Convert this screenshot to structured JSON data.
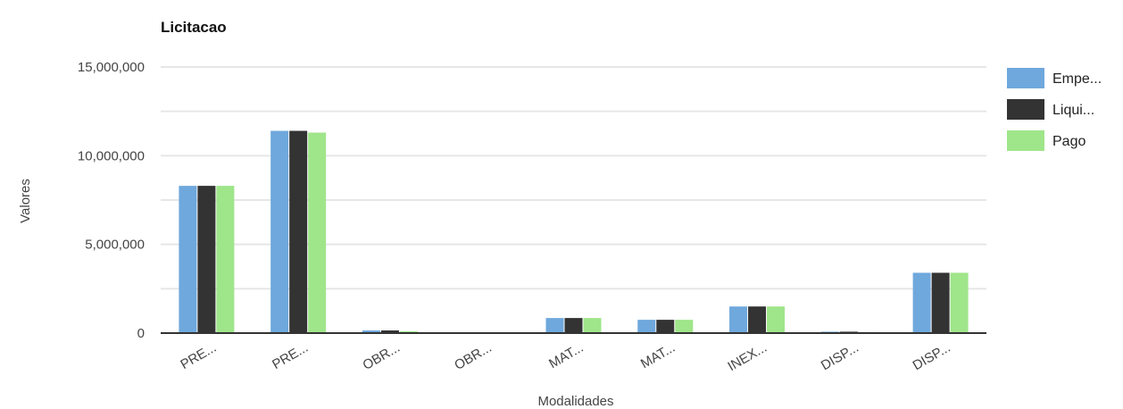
{
  "chart_data": {
    "type": "bar",
    "title": "Licitacao",
    "xlabel": "Modalidades",
    "ylabel": "Valores",
    "ylim": [
      0,
      15000000
    ],
    "yticks": [
      "0",
      "5,000,000",
      "10,000,000",
      "15,000,000"
    ],
    "ytick_values": [
      0,
      5000000,
      10000000,
      15000000
    ],
    "categories": [
      "PRE...",
      "PRE...",
      "OBR...",
      "OBR...",
      "MAT...",
      "MAT...",
      "INEX...",
      "DISP...",
      "DISP..."
    ],
    "series": [
      {
        "name": "Empe...",
        "color": "#6fa8dc",
        "values": [
          8300000,
          11400000,
          150000,
          20000,
          850000,
          750000,
          1500000,
          80000,
          3400000
        ]
      },
      {
        "name": "Liqui...",
        "color": "#333333",
        "values": [
          8300000,
          11400000,
          150000,
          20000,
          850000,
          750000,
          1500000,
          80000,
          3400000
        ]
      },
      {
        "name": "Pago",
        "color": "#9fe58a",
        "values": [
          8300000,
          11300000,
          100000,
          20000,
          850000,
          750000,
          1500000,
          60000,
          3400000
        ]
      }
    ],
    "grid": true,
    "legend_position": "right"
  }
}
